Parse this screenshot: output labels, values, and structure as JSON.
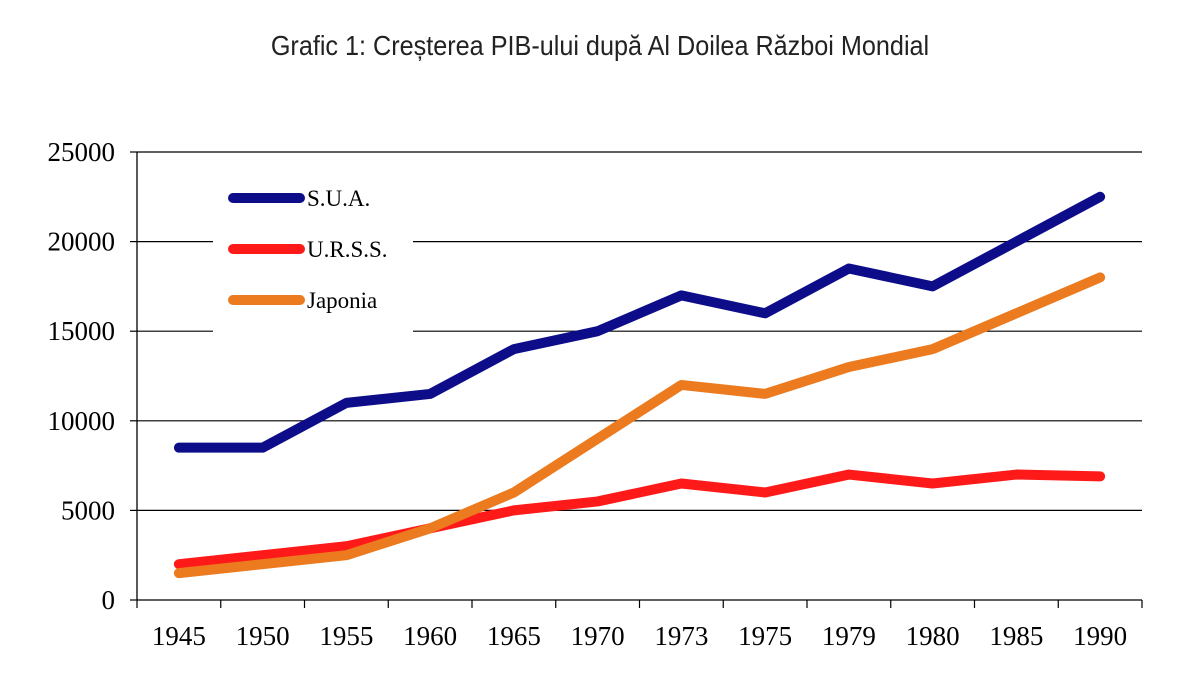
{
  "chart_data": {
    "type": "line",
    "title": "Grafic 1: Creșterea PIB-ului după Al Doilea Război Mondial",
    "xlabel": "",
    "ylabel": "",
    "categories": [
      "1945",
      "1950",
      "1955",
      "1960",
      "1965",
      "1970",
      "1973",
      "1975",
      "1979",
      "1980",
      "1985",
      "1990"
    ],
    "ylim": [
      0,
      25000
    ],
    "yticks": [
      0,
      5000,
      10000,
      15000,
      20000,
      25000
    ],
    "grid": true,
    "legend_position": "top-left",
    "series": [
      {
        "name": "S.U.A.",
        "color": "#0d0d8a",
        "values": [
          8500,
          8500,
          11000,
          11500,
          14000,
          15000,
          17000,
          16000,
          18500,
          17500,
          20000,
          22500
        ]
      },
      {
        "name": "U.R.S.S.",
        "color": "#ff1a1a",
        "values": [
          2000,
          2500,
          3000,
          4000,
          5000,
          5500,
          6500,
          6000,
          7000,
          6500,
          7000,
          6900
        ]
      },
      {
        "name": "Japonia",
        "color": "#ec7a1e",
        "values": [
          1500,
          2000,
          2500,
          4000,
          6000,
          9000,
          12000,
          11500,
          13000,
          14000,
          16000,
          18000
        ]
      }
    ]
  }
}
